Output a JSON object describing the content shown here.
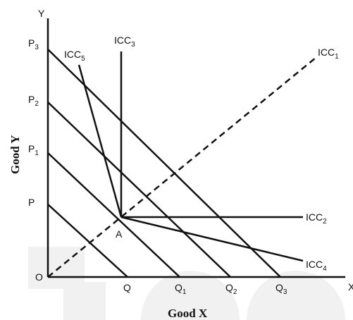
{
  "axes": {
    "y_letter": "Y",
    "x_letter": "X",
    "origin": "O",
    "y_title": "Good Y",
    "x_title": "Good X"
  },
  "y_intercepts": [
    {
      "base": "P",
      "sub": ""
    },
    {
      "base": "P",
      "sub": "1"
    },
    {
      "base": "P",
      "sub": "2"
    },
    {
      "base": "P",
      "sub": "3"
    }
  ],
  "x_intercepts": [
    {
      "base": "Q",
      "sub": ""
    },
    {
      "base": "Q",
      "sub": "1"
    },
    {
      "base": "Q",
      "sub": "2"
    },
    {
      "base": "Q",
      "sub": "3"
    }
  ],
  "point_a": "A",
  "icc_labels": [
    {
      "base": "ICC",
      "sub": "1"
    },
    {
      "base": "ICC",
      "sub": "2"
    },
    {
      "base": "ICC",
      "sub": "3"
    },
    {
      "base": "ICC",
      "sub": "4"
    },
    {
      "base": "ICC",
      "sub": "5"
    }
  ],
  "colors": {
    "ink": "#111111",
    "watermark": "#f1f1f1"
  }
}
